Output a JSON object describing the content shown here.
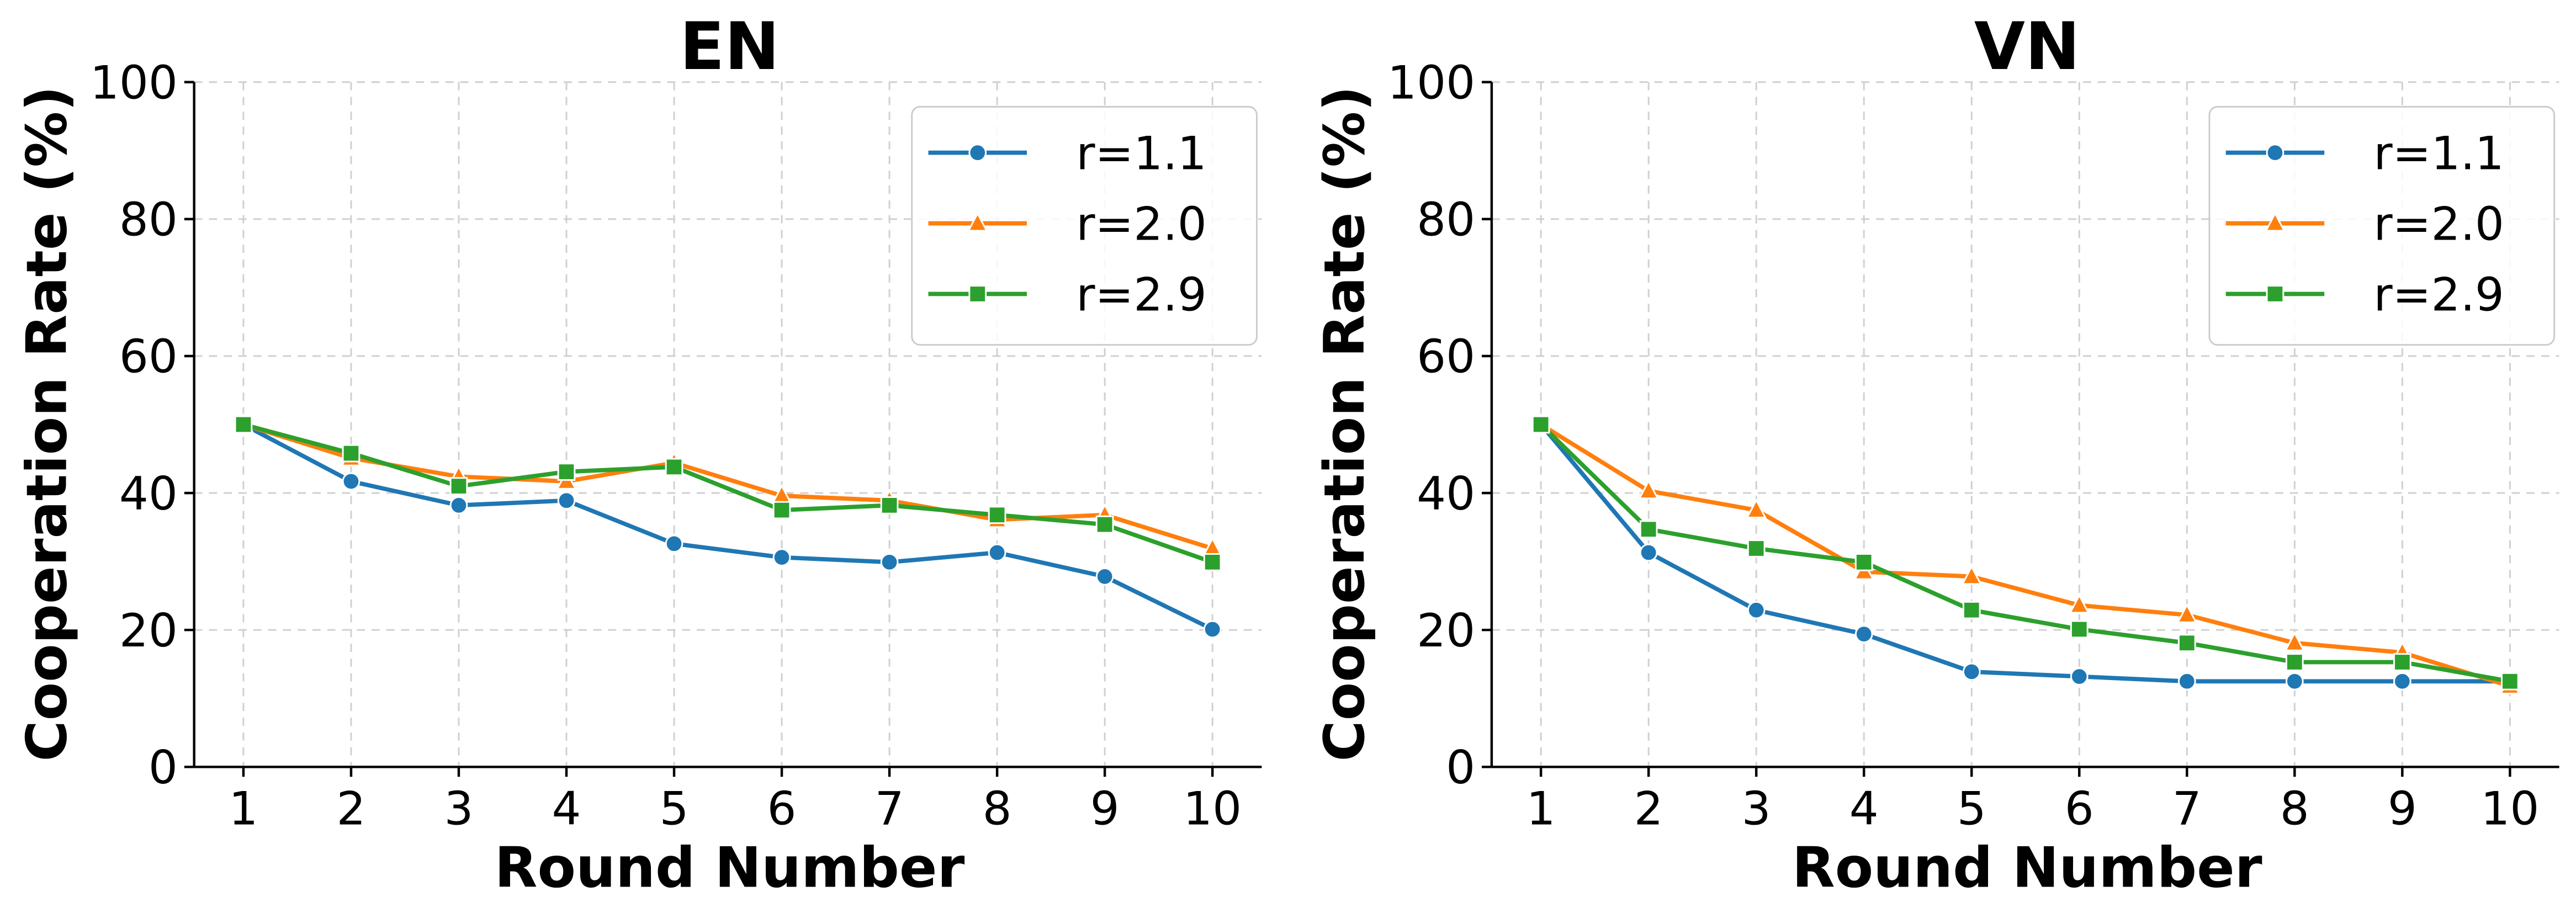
{
  "colors": {
    "r=1.1": "#1f77b4",
    "r=2.0": "#ff7f0e",
    "r=2.9": "#2ca02c"
  },
  "chart_data": [
    {
      "type": "line",
      "title": "EN",
      "xlabel": "Round Number",
      "ylabel": "Cooperation Rate (%)",
      "x": [
        1,
        2,
        3,
        4,
        5,
        6,
        7,
        8,
        9,
        10
      ],
      "ylim": [
        0,
        100
      ],
      "yticks": [
        0,
        20,
        40,
        60,
        80,
        100
      ],
      "grid": true,
      "legend": "top-right",
      "series": [
        {
          "name": "r=1.1",
          "marker": "circle",
          "values": [
            50,
            41.7,
            38.2,
            38.9,
            32.6,
            30.6,
            29.9,
            31.3,
            27.8,
            20.1
          ]
        },
        {
          "name": "r=2.0",
          "marker": "triangle",
          "values": [
            50,
            45.1,
            42.4,
            41.7,
            44.4,
            39.6,
            38.9,
            36.1,
            36.8,
            31.9
          ]
        },
        {
          "name": "r=2.9",
          "marker": "square",
          "values": [
            50,
            45.8,
            41.0,
            43.1,
            43.8,
            37.5,
            38.2,
            36.8,
            35.4,
            29.9
          ]
        }
      ]
    },
    {
      "type": "line",
      "title": "VN",
      "xlabel": "Round Number",
      "ylabel": "Cooperation Rate (%)",
      "x": [
        1,
        2,
        3,
        4,
        5,
        6,
        7,
        8,
        9,
        10
      ],
      "ylim": [
        0,
        100
      ],
      "yticks": [
        0,
        20,
        40,
        60,
        80,
        100
      ],
      "grid": true,
      "legend": "top-right",
      "series": [
        {
          "name": "r=1.1",
          "marker": "circle",
          "values": [
            50,
            31.3,
            22.9,
            19.4,
            13.9,
            13.2,
            12.5,
            12.5,
            12.5,
            12.5
          ]
        },
        {
          "name": "r=2.0",
          "marker": "triangle",
          "values": [
            50,
            40.3,
            37.5,
            28.5,
            27.8,
            23.6,
            22.2,
            18.1,
            16.7,
            11.8
          ]
        },
        {
          "name": "r=2.9",
          "marker": "square",
          "values": [
            50,
            34.7,
            31.9,
            29.9,
            22.9,
            20.1,
            18.1,
            15.3,
            15.3,
            12.5
          ]
        }
      ]
    }
  ]
}
